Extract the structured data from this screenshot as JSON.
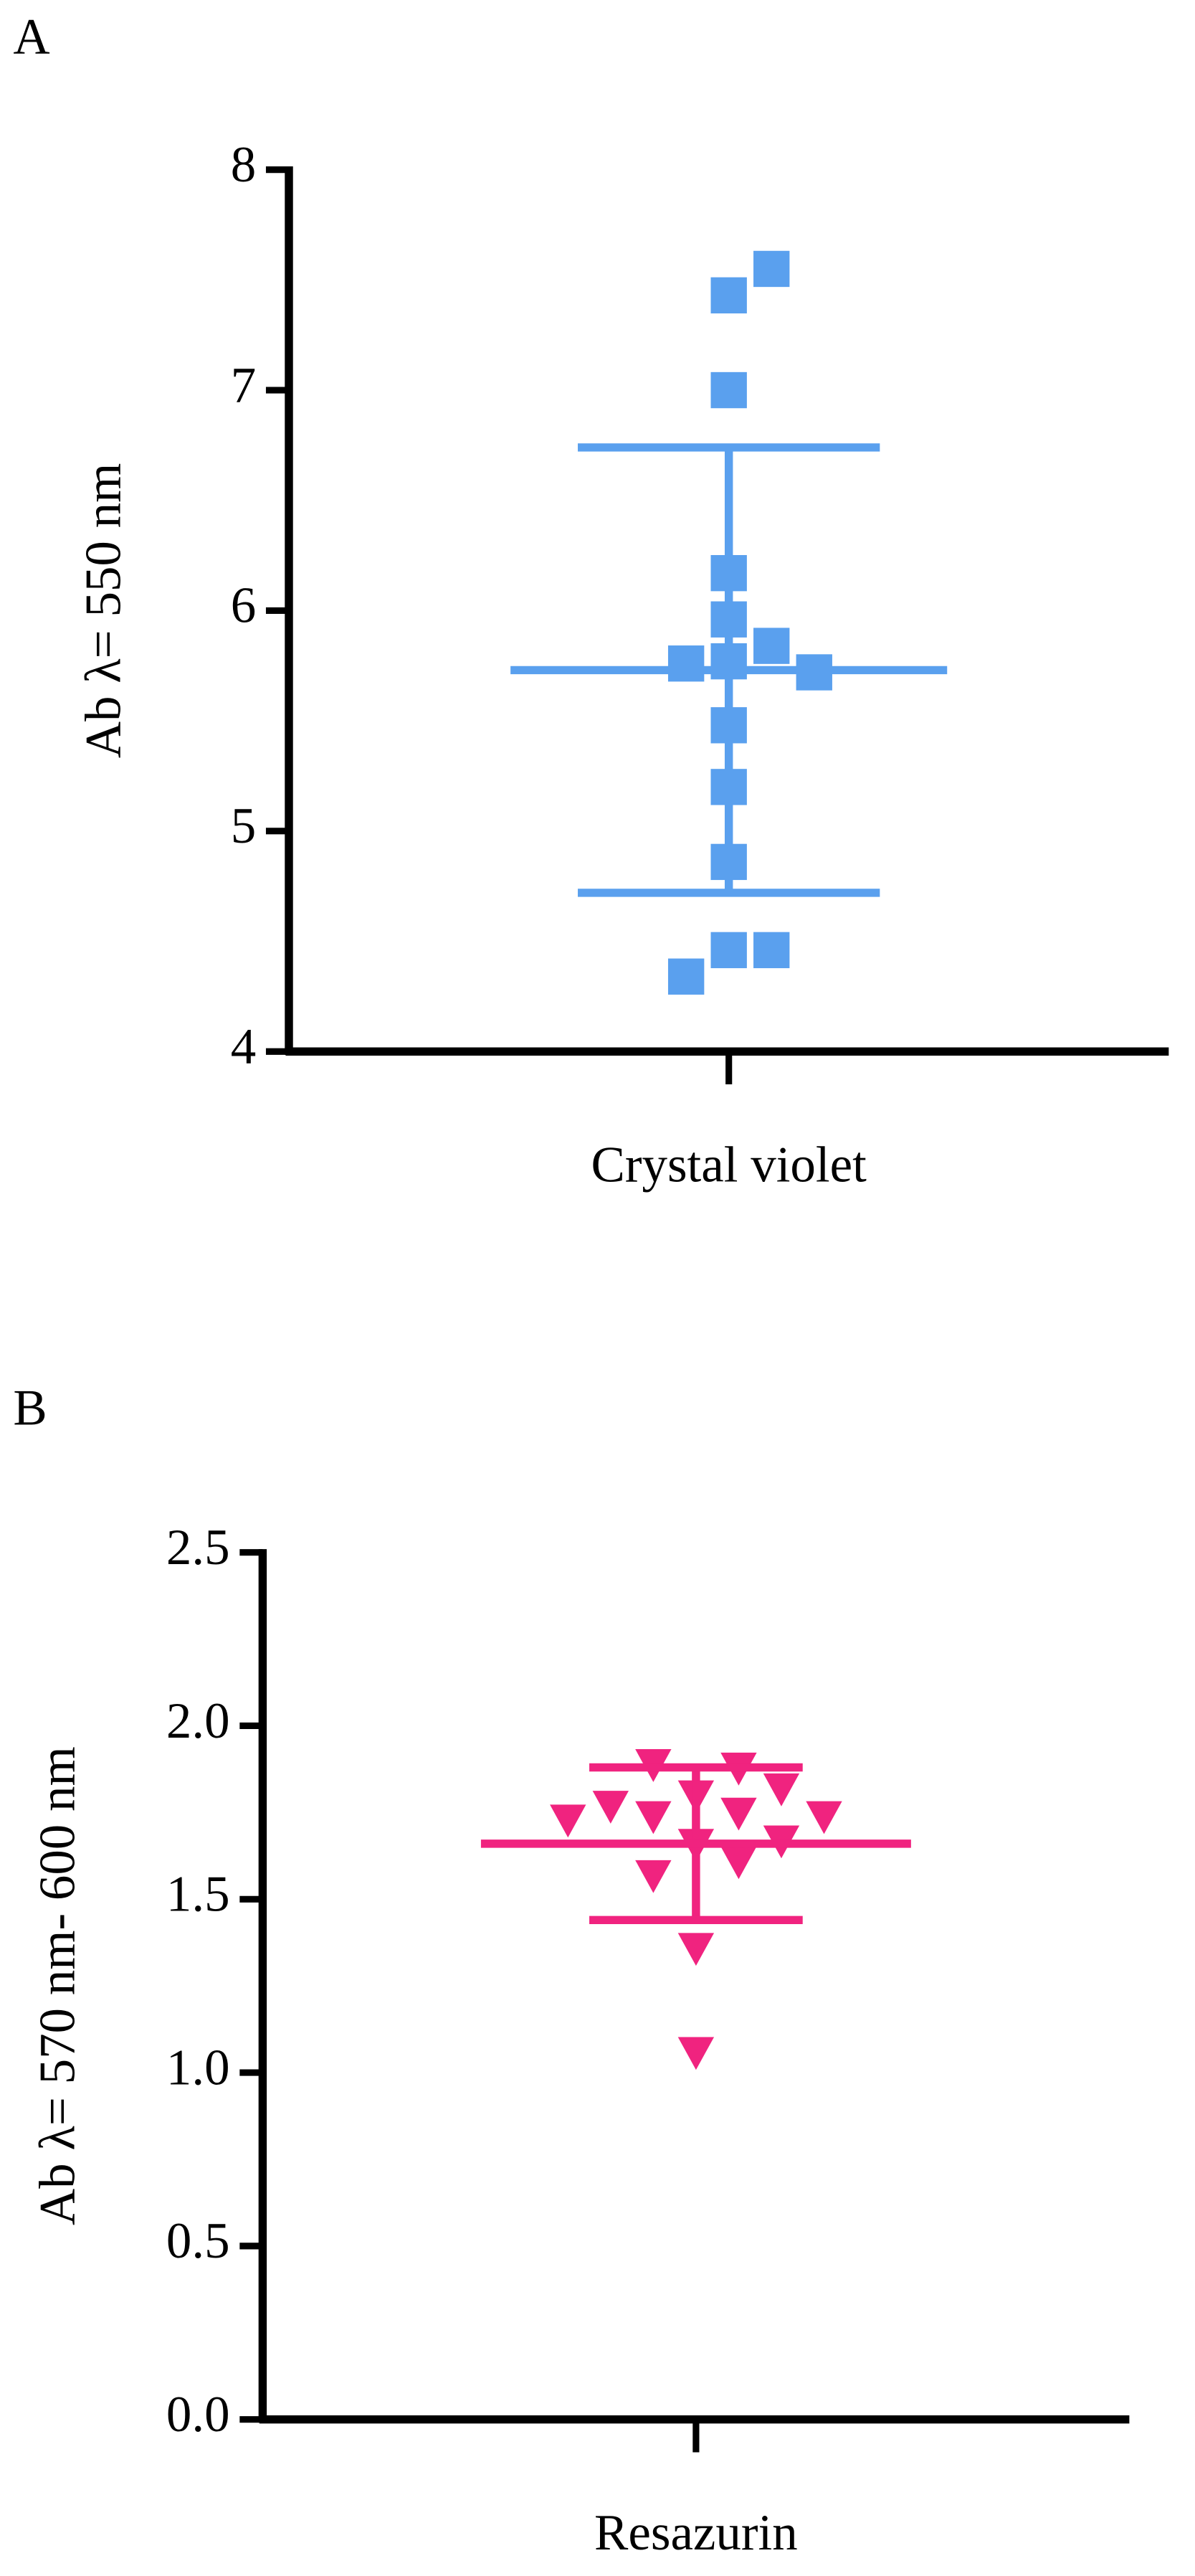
{
  "chart_data": [
    {
      "type": "scatter",
      "label": "A",
      "y_label": "Ab λ= 550 nm",
      "categories": [
        "Crystal violet"
      ],
      "series": [
        {
          "color": "#5aa0ee",
          "marker": "square",
          "values": [
            7.43,
            7.55,
            7.0,
            6.17,
            5.96,
            5.84,
            5.77,
            5.76,
            5.72,
            5.48,
            5.2,
            4.86,
            4.46,
            4.46,
            4.34
          ]
        }
      ],
      "mean": 5.73,
      "sd": 1.01,
      "ylim": [
        4,
        8
      ],
      "yticks": [
        4,
        5,
        6,
        7,
        8
      ]
    },
    {
      "type": "scatter",
      "label": "B",
      "y_label": "Ab  λ= 570 nm- 600 nm",
      "categories": [
        "Resazurin"
      ],
      "series": [
        {
          "color": "#f0237f",
          "marker": "triangle-down",
          "values": [
            1.8,
            1.88,
            1.89,
            1.82,
            1.75,
            1.74,
            1.77,
            1.74,
            1.73,
            1.66,
            1.67,
            1.61,
            1.57,
            1.36,
            1.06
          ]
        }
      ],
      "mean": 1.66,
      "sd": 0.22,
      "ylim": [
        0,
        2.5
      ],
      "yticks": [
        {
          "value": 0,
          "label": "0.0"
        },
        0.5,
        {
          "value": 1,
          "label": "1.0"
        },
        1.5,
        {
          "value": 2,
          "label": "2.0"
        },
        2.5
      ]
    }
  ]
}
